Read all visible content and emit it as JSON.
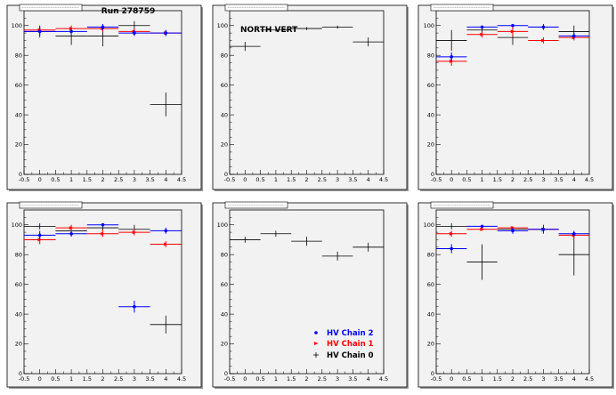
{
  "run_label": "Run 278759",
  "annotation": "NORTH VERT",
  "legend": [
    {
      "label": "HV Chain 2",
      "color": "#0000ff"
    },
    {
      "label": "HV Chain 1",
      "color": "#ff0000"
    },
    {
      "label": "HV Chain 0",
      "color": "#000000"
    }
  ],
  "colors": {
    "chain2": "#0000ff",
    "chain1": "#ff0000",
    "chain0": "#000000",
    "frame_bg": "#f2f2f2"
  },
  "chart_data": [
    {
      "type": "scatter",
      "title": "",
      "xlim": [
        -0.5,
        4.5
      ],
      "ylim": [
        0,
        110
      ],
      "xticks": [
        -0.5,
        0,
        0.5,
        1,
        1.5,
        2,
        2.5,
        3,
        3.5,
        4,
        4.5
      ],
      "yticks": [
        0,
        20,
        40,
        60,
        80,
        100
      ],
      "series": [
        {
          "color": "#000000",
          "x": [
            0,
            1,
            2,
            3,
            4
          ],
          "y": [
            96,
            93,
            93,
            100,
            47
          ],
          "yerr": [
            4,
            6,
            7,
            3,
            8
          ]
        },
        {
          "color": "#ff0000",
          "x": [
            0,
            1,
            2,
            3,
            4
          ],
          "y": [
            97,
            98,
            98,
            96,
            95
          ],
          "yerr": [
            2,
            2,
            2,
            2,
            2
          ]
        },
        {
          "color": "#0000ff",
          "x": [
            0,
            1,
            2,
            3,
            4
          ],
          "y": [
            96,
            96,
            99,
            95,
            95
          ],
          "yerr": [
            3,
            2,
            2,
            2,
            2
          ]
        }
      ]
    },
    {
      "type": "scatter",
      "title": "",
      "xlim": [
        -0.5,
        4.5
      ],
      "ylim": [
        0,
        110
      ],
      "xticks": [
        -0.5,
        0,
        0.5,
        1,
        1.5,
        2,
        2.5,
        3,
        3.5,
        4,
        4.5
      ],
      "yticks": [
        0,
        20,
        40,
        60,
        80,
        100
      ],
      "series": [
        {
          "color": "#000000",
          "x": [
            0,
            1,
            2,
            3,
            4
          ],
          "y": [
            86,
            97,
            98,
            99,
            89
          ],
          "yerr": [
            3,
            1,
            1,
            1,
            3
          ]
        }
      ]
    },
    {
      "type": "scatter",
      "title": "",
      "xlim": [
        -0.5,
        4.5
      ],
      "ylim": [
        0,
        110
      ],
      "xticks": [
        -0.5,
        0,
        0.5,
        1,
        1.5,
        2,
        2.5,
        3,
        3.5,
        4,
        4.5
      ],
      "yticks": [
        0,
        20,
        40,
        60,
        80,
        100
      ],
      "series": [
        {
          "color": "#000000",
          "x": [
            0,
            1,
            2,
            3,
            4
          ],
          "y": [
            90,
            97,
            92,
            99,
            96
          ],
          "yerr": [
            7,
            2,
            5,
            2,
            4
          ]
        },
        {
          "color": "#ff0000",
          "x": [
            0,
            1,
            2,
            3,
            4
          ],
          "y": [
            76,
            94,
            96,
            90,
            92
          ],
          "yerr": [
            3,
            2,
            3,
            2,
            2
          ]
        },
        {
          "color": "#0000ff",
          "x": [
            0,
            1,
            2,
            3,
            4
          ],
          "y": [
            79,
            99,
            100,
            99,
            93
          ],
          "yerr": [
            3,
            1,
            1,
            1,
            2
          ]
        }
      ]
    },
    {
      "type": "scatter",
      "title": "",
      "xlim": [
        -0.5,
        4.5
      ],
      "ylim": [
        0,
        110
      ],
      "xticks": [
        -0.5,
        0,
        0.5,
        1,
        1.5,
        2,
        2.5,
        3,
        3.5,
        4,
        4.5
      ],
      "yticks": [
        0,
        20,
        40,
        60,
        80,
        100
      ],
      "series": [
        {
          "color": "#000000",
          "x": [
            0,
            1,
            2,
            3,
            4
          ],
          "y": [
            99,
            96,
            98,
            97,
            33
          ],
          "yerr": [
            2,
            2,
            2,
            3,
            6
          ]
        },
        {
          "color": "#ff0000",
          "x": [
            0,
            1,
            2,
            3,
            4
          ],
          "y": [
            90,
            98,
            94,
            95,
            87
          ],
          "yerr": [
            3,
            2,
            2,
            2,
            2
          ]
        },
        {
          "color": "#0000ff",
          "x": [
            0,
            1,
            2,
            3,
            4
          ],
          "y": [
            93,
            94,
            100,
            45,
            96
          ],
          "yerr": [
            3,
            2,
            1,
            4,
            2
          ]
        }
      ]
    },
    {
      "type": "scatter",
      "title": "",
      "xlim": [
        -0.5,
        4.5
      ],
      "ylim": [
        0,
        110
      ],
      "xticks": [
        -0.5,
        0,
        0.5,
        1,
        1.5,
        2,
        2.5,
        3,
        3.5,
        4,
        4.5
      ],
      "yticks": [
        0,
        20,
        40,
        60,
        80,
        100
      ],
      "series": [
        {
          "color": "#000000",
          "x": [
            0,
            1,
            2,
            3,
            4
          ],
          "y": [
            90,
            94,
            89,
            79,
            85
          ],
          "yerr": [
            2,
            2,
            3,
            3,
            3
          ]
        }
      ]
    },
    {
      "type": "scatter",
      "title": "",
      "xlim": [
        -0.5,
        4.5
      ],
      "ylim": [
        0,
        110
      ],
      "xticks": [
        -0.5,
        0,
        0.5,
        1,
        1.5,
        2,
        2.5,
        3,
        3.5,
        4,
        4.5
      ],
      "yticks": [
        0,
        20,
        40,
        60,
        80,
        100
      ],
      "series": [
        {
          "color": "#000000",
          "x": [
            0,
            1,
            2,
            3,
            4
          ],
          "y": [
            99,
            75,
            97,
            97,
            80
          ],
          "yerr": [
            2,
            12,
            2,
            3,
            14
          ]
        },
        {
          "color": "#ff0000",
          "x": [
            0,
            1,
            2,
            3,
            4
          ],
          "y": [
            94,
            97,
            98,
            97,
            93
          ],
          "yerr": [
            2,
            1,
            1,
            1,
            2
          ]
        },
        {
          "color": "#0000ff",
          "x": [
            0,
            1,
            2,
            3,
            4
          ],
          "y": [
            84,
            99,
            96,
            97,
            94
          ],
          "yerr": [
            3,
            1,
            2,
            2,
            2
          ]
        }
      ]
    }
  ]
}
